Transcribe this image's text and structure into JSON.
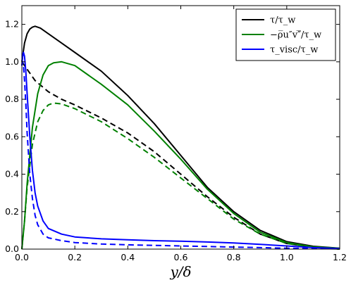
{
  "chart_data": {
    "type": "line",
    "xlabel": "y/δ",
    "ylabel": "",
    "xlim": [
      0.0,
      1.2
    ],
    "ylim": [
      0.0,
      1.3
    ],
    "xticks": [
      "0.0",
      "0.2",
      "0.4",
      "0.6",
      "0.8",
      "1.0",
      "1.2"
    ],
    "yticks": [
      "0.0",
      "0.2",
      "0.4",
      "0.6",
      "0.8",
      "1.0",
      "1.2"
    ],
    "grid": false,
    "legend_position": "top-right",
    "legend": [
      {
        "label": "τ/τ_w",
        "color": "#000000"
      },
      {
        "label": "−ρ̅u″v″̅/τ_w",
        "color": "#008000"
      },
      {
        "label": "τ_visc/τ_w",
        "color": "#0000ff"
      }
    ],
    "series": [
      {
        "color": "#000000",
        "style": "solid",
        "x": [
          0.0,
          0.005,
          0.01,
          0.02,
          0.03,
          0.04,
          0.05,
          0.07,
          0.1,
          0.15,
          0.2,
          0.3,
          0.4,
          0.5,
          0.6,
          0.7,
          0.8,
          0.9,
          1.0,
          1.1,
          1.2
        ],
        "y": [
          1.0,
          1.05,
          1.1,
          1.15,
          1.175,
          1.185,
          1.19,
          1.18,
          1.15,
          1.1,
          1.05,
          0.95,
          0.82,
          0.67,
          0.5,
          0.33,
          0.2,
          0.1,
          0.04,
          0.015,
          0.005
        ]
      },
      {
        "color": "#000000",
        "style": "dashed",
        "x": [
          0.0,
          0.02,
          0.05,
          0.1,
          0.15,
          0.2,
          0.3,
          0.4,
          0.5,
          0.6,
          0.7,
          0.8,
          0.9,
          1.0,
          1.1,
          1.2
        ],
        "y": [
          1.0,
          0.96,
          0.9,
          0.84,
          0.8,
          0.77,
          0.7,
          0.62,
          0.52,
          0.4,
          0.28,
          0.17,
          0.08,
          0.03,
          0.01,
          0.0
        ]
      },
      {
        "color": "#008000",
        "style": "solid",
        "x": [
          0.0,
          0.01,
          0.02,
          0.04,
          0.06,
          0.08,
          0.1,
          0.12,
          0.15,
          0.2,
          0.25,
          0.3,
          0.4,
          0.5,
          0.6,
          0.7,
          0.8,
          0.9,
          1.0,
          1.1,
          1.2
        ],
        "y": [
          0.0,
          0.15,
          0.35,
          0.65,
          0.83,
          0.93,
          0.98,
          0.995,
          1.0,
          0.98,
          0.93,
          0.88,
          0.77,
          0.63,
          0.48,
          0.32,
          0.19,
          0.09,
          0.035,
          0.012,
          0.004
        ]
      },
      {
        "color": "#008000",
        "style": "dashed",
        "x": [
          0.0,
          0.01,
          0.02,
          0.04,
          0.06,
          0.08,
          0.1,
          0.12,
          0.15,
          0.2,
          0.3,
          0.4,
          0.5,
          0.6,
          0.7,
          0.8,
          0.9,
          1.0,
          1.1,
          1.2
        ],
        "y": [
          0.0,
          0.15,
          0.33,
          0.56,
          0.68,
          0.74,
          0.77,
          0.78,
          0.775,
          0.75,
          0.68,
          0.59,
          0.49,
          0.38,
          0.27,
          0.16,
          0.08,
          0.03,
          0.01,
          0.0
        ]
      },
      {
        "color": "#0000ff",
        "style": "solid",
        "x": [
          0.0,
          0.003,
          0.006,
          0.01,
          0.015,
          0.02,
          0.03,
          0.04,
          0.05,
          0.06,
          0.08,
          0.1,
          0.15,
          0.2,
          0.3,
          0.4,
          0.5,
          0.6,
          0.7,
          0.8,
          0.9,
          1.0,
          1.1,
          1.2
        ],
        "y": [
          0.98,
          1.03,
          1.05,
          1.03,
          0.95,
          0.83,
          0.6,
          0.42,
          0.3,
          0.23,
          0.15,
          0.11,
          0.08,
          0.065,
          0.055,
          0.05,
          0.045,
          0.042,
          0.038,
          0.033,
          0.025,
          0.017,
          0.008,
          0.003
        ]
      },
      {
        "color": "#0000ff",
        "style": "dashed",
        "x": [
          0.0,
          0.003,
          0.006,
          0.01,
          0.015,
          0.02,
          0.03,
          0.04,
          0.05,
          0.06,
          0.08,
          0.1,
          0.15,
          0.2,
          0.3,
          0.4,
          0.5,
          0.6,
          0.7,
          0.8,
          0.9,
          1.0,
          1.1,
          1.2
        ],
        "y": [
          0.98,
          1.0,
          0.98,
          0.9,
          0.78,
          0.62,
          0.4,
          0.27,
          0.18,
          0.13,
          0.08,
          0.06,
          0.045,
          0.035,
          0.027,
          0.023,
          0.02,
          0.017,
          0.014,
          0.011,
          0.008,
          0.005,
          0.003,
          0.001
        ]
      }
    ]
  }
}
